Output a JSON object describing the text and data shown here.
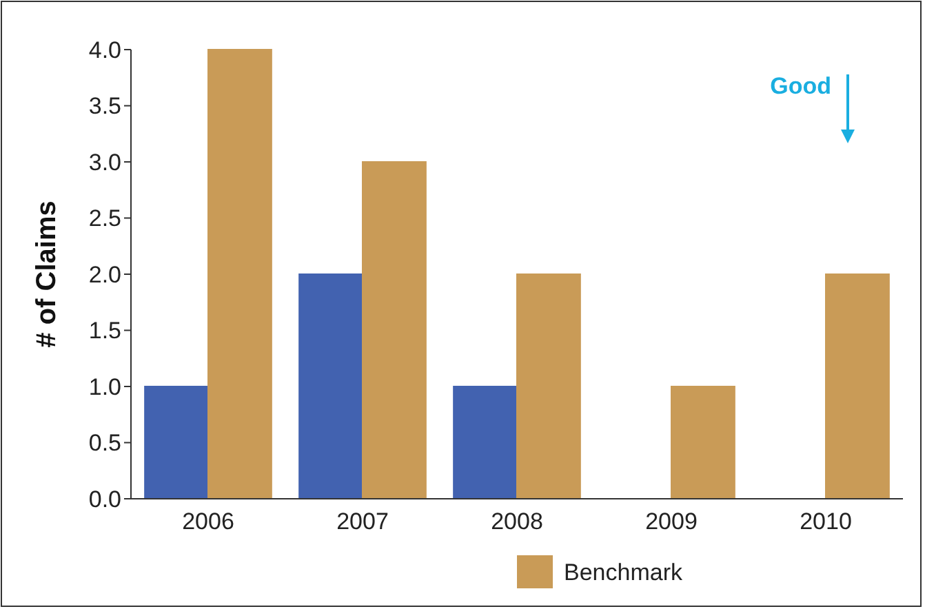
{
  "chart_data": {
    "type": "bar",
    "ylabel": "# of Claims",
    "categories": [
      "2006",
      "2007",
      "2008",
      "2009",
      "2010"
    ],
    "series": [
      {
        "color": "#4262b0",
        "values": [
          1,
          2,
          1,
          0,
          0
        ]
      },
      {
        "name": "Benchmark",
        "color": "#c99b57",
        "values": [
          4,
          3,
          2,
          1,
          2
        ]
      }
    ],
    "ylim": [
      0,
      4
    ],
    "yticks": [
      {
        "value": 0,
        "label": "0.0"
      },
      0.5,
      {
        "value": 1,
        "label": "1.0"
      },
      1.5,
      {
        "value": 2,
        "label": "2.0"
      },
      2.5,
      {
        "value": 3,
        "label": "3.0"
      },
      3.5,
      {
        "value": 4,
        "label": "4.0"
      }
    ],
    "annotations": [
      "Good"
    ],
    "legend": "bottom",
    "grid": false
  }
}
